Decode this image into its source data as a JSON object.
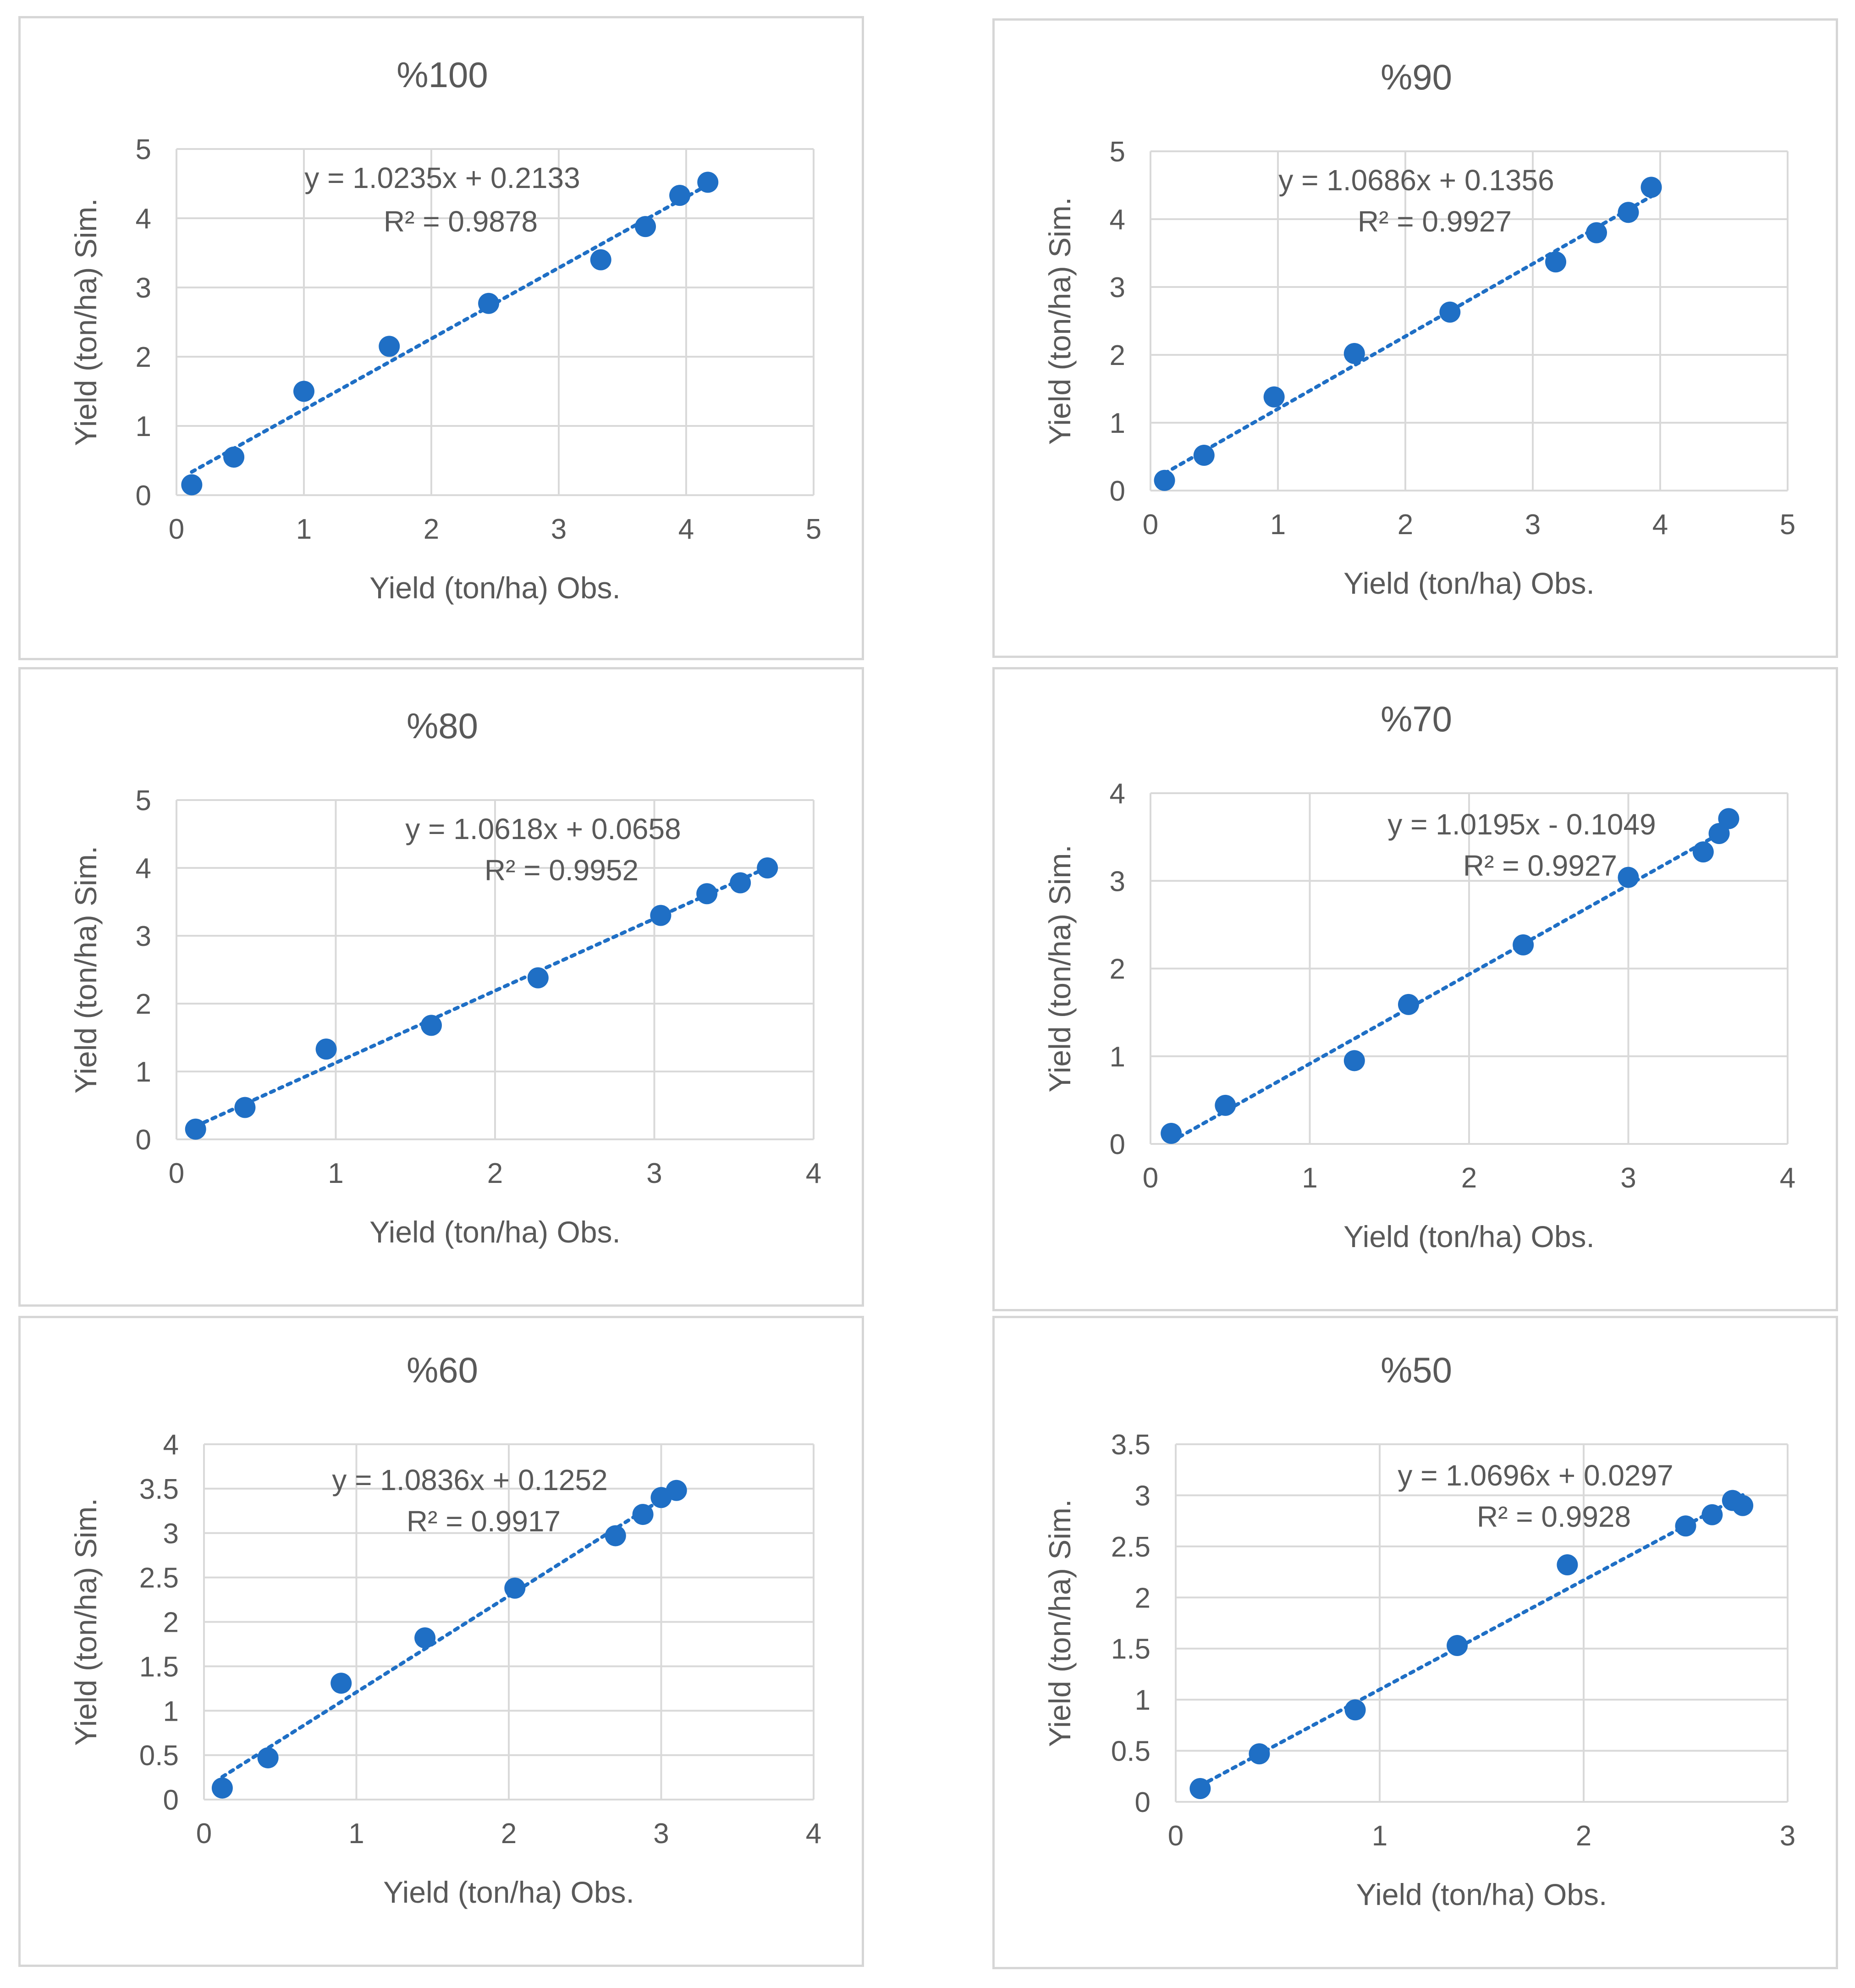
{
  "colors": {
    "marker": "#1f6fc5",
    "trend": "#1f6fc5",
    "grid": "#d9d9d9",
    "text": "#595959",
    "border": "#d6d6d6"
  },
  "chart_data": [
    {
      "type": "scatter",
      "title": "%100",
      "xlabel": "Yield (ton/ha) Obs.",
      "ylabel": "Yield (ton/ha) Sim.",
      "xlim": [
        0,
        5
      ],
      "ylim": [
        0,
        5
      ],
      "xticks": [
        0,
        1,
        2,
        3,
        4,
        5
      ],
      "yticks": [
        0,
        1,
        2,
        3,
        4,
        5
      ],
      "xtick_labels": [
        "0",
        "1",
        "2",
        "3",
        "4",
        "5"
      ],
      "ytick_labels": [
        "0",
        "1",
        "2",
        "3",
        "4",
        "5"
      ],
      "points": [
        [
          0.12,
          0.15
        ],
        [
          0.45,
          0.55
        ],
        [
          1.0,
          1.5
        ],
        [
          1.67,
          2.15
        ],
        [
          2.45,
          2.77
        ],
        [
          3.33,
          3.4
        ],
        [
          3.68,
          3.88
        ],
        [
          3.95,
          4.33
        ],
        [
          4.17,
          4.52
        ]
      ],
      "trendline": {
        "slope": 1.0235,
        "intercept": 0.2133,
        "x_range": [
          0.12,
          4.17
        ]
      },
      "equation": "y = 1.0235x + 0.2133",
      "r2": "R² = 0.9878"
    },
    {
      "type": "scatter",
      "title": "%90",
      "xlabel": "Yield (ton/ha) Obs.",
      "ylabel": "Yield (ton/ha) Sim.",
      "xlim": [
        0,
        5
      ],
      "ylim": [
        0,
        5
      ],
      "xticks": [
        0,
        1,
        2,
        3,
        4,
        5
      ],
      "yticks": [
        0,
        1,
        2,
        3,
        4,
        5
      ],
      "xtick_labels": [
        "0",
        "1",
        "2",
        "3",
        "4",
        "5"
      ],
      "ytick_labels": [
        "0",
        "1",
        "2",
        "3",
        "4",
        "5"
      ],
      "points": [
        [
          0.11,
          0.15
        ],
        [
          0.42,
          0.52
        ],
        [
          0.97,
          1.38
        ],
        [
          1.6,
          2.02
        ],
        [
          2.35,
          2.63
        ],
        [
          3.18,
          3.37
        ],
        [
          3.5,
          3.8
        ],
        [
          3.75,
          4.1
        ],
        [
          3.93,
          4.47
        ]
      ],
      "trendline": {
        "slope": 1.0686,
        "intercept": 0.1356,
        "x_range": [
          0.11,
          3.93
        ]
      },
      "equation": "y = 1.0686x + 0.1356",
      "r2": "R² = 0.9927"
    },
    {
      "type": "scatter",
      "title": "%80",
      "xlabel": "Yield (ton/ha) Obs.",
      "ylabel": "Yield (ton/ha) Sim.",
      "xlim": [
        0,
        4
      ],
      "ylim": [
        0,
        5
      ],
      "xticks": [
        0,
        1,
        2,
        3,
        4
      ],
      "yticks": [
        0,
        1,
        2,
        3,
        4,
        5
      ],
      "xtick_labels": [
        "0",
        "1",
        "2",
        "3",
        "4"
      ],
      "ytick_labels": [
        "0",
        "1",
        "2",
        "3",
        "4",
        "5"
      ],
      "points": [
        [
          0.12,
          0.15
        ],
        [
          0.43,
          0.47
        ],
        [
          0.94,
          1.33
        ],
        [
          1.6,
          1.68
        ],
        [
          2.27,
          2.38
        ],
        [
          3.04,
          3.3
        ],
        [
          3.33,
          3.62
        ],
        [
          3.54,
          3.78
        ],
        [
          3.71,
          4.0
        ]
      ],
      "trendline": {
        "slope": 1.0618,
        "intercept": 0.0658,
        "x_range": [
          0.12,
          3.71
        ]
      },
      "equation": "y = 1.0618x + 0.0658",
      "r2": "R² = 0.9952"
    },
    {
      "type": "scatter",
      "title": "%70",
      "xlabel": "Yield (ton/ha) Obs.",
      "ylabel": "Yield (ton/ha) Sim.",
      "xlim": [
        0,
        4
      ],
      "ylim": [
        0,
        4
      ],
      "xticks": [
        0,
        1,
        2,
        3,
        4
      ],
      "yticks": [
        0,
        1,
        2,
        3,
        4
      ],
      "xtick_labels": [
        "0",
        "1",
        "2",
        "3",
        "4"
      ],
      "ytick_labels": [
        "0",
        "1",
        "2",
        "3",
        "4"
      ],
      "points": [
        [
          0.13,
          0.12
        ],
        [
          0.47,
          0.44
        ],
        [
          1.28,
          0.95
        ],
        [
          1.62,
          1.59
        ],
        [
          2.34,
          2.27
        ],
        [
          3.0,
          3.04
        ],
        [
          3.47,
          3.33
        ],
        [
          3.57,
          3.54
        ],
        [
          3.63,
          3.71
        ]
      ],
      "trendline": {
        "slope": 1.0195,
        "intercept": -0.1049,
        "x_range": [
          0.13,
          3.63
        ]
      },
      "equation": "y = 1.0195x - 0.1049",
      "r2": "R² = 0.9927"
    },
    {
      "type": "scatter",
      "title": "%60",
      "xlabel": "Yield (ton/ha) Obs.",
      "ylabel": "Yield (ton/ha) Sim.",
      "xlim": [
        0,
        4
      ],
      "ylim": [
        0,
        4
      ],
      "xticks": [
        0,
        1,
        2,
        3,
        4
      ],
      "yticks": [
        0,
        0.5,
        1,
        1.5,
        2,
        2.5,
        3,
        3.5,
        4
      ],
      "xtick_labels": [
        "0",
        "1",
        "2",
        "3",
        "4"
      ],
      "ytick_labels": [
        "0",
        "0.5",
        "1",
        "1.5",
        "2",
        "2.5",
        "3",
        "3.5",
        "4"
      ],
      "points": [
        [
          0.12,
          0.13
        ],
        [
          0.42,
          0.47
        ],
        [
          0.9,
          1.31
        ],
        [
          1.45,
          1.82
        ],
        [
          2.04,
          2.38
        ],
        [
          2.7,
          2.97
        ],
        [
          2.88,
          3.21
        ],
        [
          3.0,
          3.4
        ],
        [
          3.1,
          3.48
        ]
      ],
      "trendline": {
        "slope": 1.0836,
        "intercept": 0.1252,
        "x_range": [
          0.12,
          3.1
        ]
      },
      "equation": "y = 1.0836x + 0.1252",
      "r2": "R² = 0.9917"
    },
    {
      "type": "scatter",
      "title": "%50",
      "xlabel": "Yield (ton/ha) Obs.",
      "ylabel": "Yield (ton/ha) Sim.",
      "xlim": [
        0,
        3
      ],
      "ylim": [
        0,
        3.5
      ],
      "xticks": [
        0,
        1,
        2,
        3
      ],
      "yticks": [
        0,
        0.5,
        1,
        1.5,
        2,
        2.5,
        3,
        3.5
      ],
      "xtick_labels": [
        "0",
        "1",
        "2",
        "3"
      ],
      "ytick_labels": [
        "0",
        "0.5",
        "1",
        "1.5",
        "2",
        "2.5",
        "3",
        "3.5"
      ],
      "points": [
        [
          0.12,
          0.13
        ],
        [
          0.41,
          0.47
        ],
        [
          0.88,
          0.9
        ],
        [
          1.38,
          1.53
        ],
        [
          1.92,
          2.32
        ],
        [
          2.5,
          2.7
        ],
        [
          2.63,
          2.81
        ],
        [
          2.73,
          2.95
        ],
        [
          2.78,
          2.9
        ]
      ],
      "trendline": {
        "slope": 1.0696,
        "intercept": 0.0297,
        "x_range": [
          0.12,
          2.78
        ]
      },
      "equation": "y = 1.0696x + 0.0297",
      "r2": "R² = 0.9928"
    }
  ]
}
